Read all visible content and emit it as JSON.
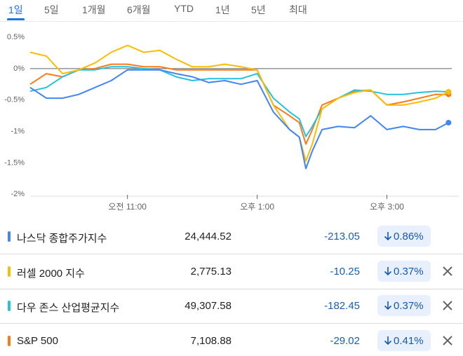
{
  "tabs": [
    "1일",
    "5일",
    "1개월",
    "6개월",
    "YTD",
    "1년",
    "5년",
    "최대"
  ],
  "chart_data": {
    "type": "line",
    "x": [
      9.5,
      9.75,
      10,
      10.25,
      10.5,
      10.75,
      11,
      11.25,
      11.5,
      11.75,
      12,
      12.25,
      12.5,
      12.75,
      13,
      13.25,
      13.5,
      13.65,
      13.75,
      13.85,
      14,
      14.25,
      14.5,
      14.75,
      15,
      15.25,
      15.5,
      15.75,
      15.95
    ],
    "xlim": [
      9.5,
      16
    ],
    "xticks": [
      {
        "value": 11,
        "label": "오전 11:00"
      },
      {
        "value": 13,
        "label": "오후 1:00"
      },
      {
        "value": 15,
        "label": "오후 3:00"
      }
    ],
    "ylim": [
      -2.03,
      0.59
    ],
    "yticks": [
      {
        "value": 0.5,
        "label": "0.5%"
      },
      {
        "value": 0,
        "label": "0%"
      },
      {
        "value": -0.5,
        "label": "-0.5%"
      },
      {
        "value": -1,
        "label": "-1%"
      },
      {
        "value": -1.5,
        "label": "-1.5%"
      },
      {
        "value": -2,
        "label": "-2%"
      }
    ],
    "zero_line": true,
    "series": [
      {
        "name": "나스닥 종합주가지수",
        "color": "#4285f4",
        "values": [
          -0.3,
          -0.47,
          -0.47,
          -0.41,
          -0.3,
          -0.19,
          -0.02,
          -0.02,
          -0.02,
          -0.08,
          -0.13,
          -0.22,
          -0.19,
          -0.25,
          -0.19,
          -0.69,
          -0.97,
          -1.09,
          -1.59,
          -1.31,
          -0.97,
          -0.92,
          -0.94,
          -0.75,
          -0.97,
          -0.92,
          -0.97,
          -0.97,
          -0.86
        ]
      },
      {
        "name": "러셀 2000 지수",
        "color": "#fbbc04",
        "values": [
          0.26,
          0.2,
          -0.08,
          -0.02,
          0.09,
          0.26,
          0.37,
          0.26,
          0.29,
          0.15,
          0.03,
          0.03,
          0.07,
          0.03,
          -0.02,
          -0.58,
          -0.97,
          -1.09,
          -1.47,
          -1.2,
          -0.64,
          -0.47,
          -0.38,
          -0.34,
          -0.58,
          -0.58,
          -0.53,
          -0.47,
          -0.37
        ]
      },
      {
        "name": "다우 존스 산업평균지수",
        "color": "#24c1e0",
        "values": [
          -0.36,
          -0.3,
          -0.13,
          -0.02,
          -0.02,
          0.03,
          0.03,
          0.0,
          -0.02,
          -0.13,
          -0.19,
          -0.16,
          -0.16,
          -0.16,
          -0.08,
          -0.47,
          -0.69,
          -0.8,
          -1.08,
          -0.92,
          -0.64,
          -0.47,
          -0.34,
          -0.36,
          -0.41,
          -0.41,
          -0.38,
          -0.36,
          -0.37
        ]
      },
      {
        "name": "S&P 500",
        "color": "#fa7b17",
        "values": [
          -0.25,
          -0.08,
          -0.13,
          -0.02,
          0.0,
          0.07,
          0.07,
          0.03,
          0.03,
          -0.02,
          -0.02,
          -0.02,
          -0.02,
          -0.02,
          -0.02,
          -0.58,
          -0.75,
          -0.86,
          -1.2,
          -0.97,
          -0.58,
          -0.47,
          -0.36,
          -0.34,
          -0.58,
          -0.53,
          -0.47,
          -0.41,
          -0.41
        ]
      }
    ]
  },
  "table": {
    "rows": [
      {
        "price": "24,444.52",
        "change": "-213.05",
        "pct": "0.86%",
        "removable": false
      },
      {
        "price": "2,775.13",
        "change": "-10.25",
        "pct": "0.37%",
        "removable": true
      },
      {
        "price": "49,307.58",
        "change": "-182.45",
        "pct": "0.37%",
        "removable": true
      },
      {
        "price": "7,108.88",
        "change": "-29.02",
        "pct": "0.41%",
        "removable": true
      }
    ]
  }
}
